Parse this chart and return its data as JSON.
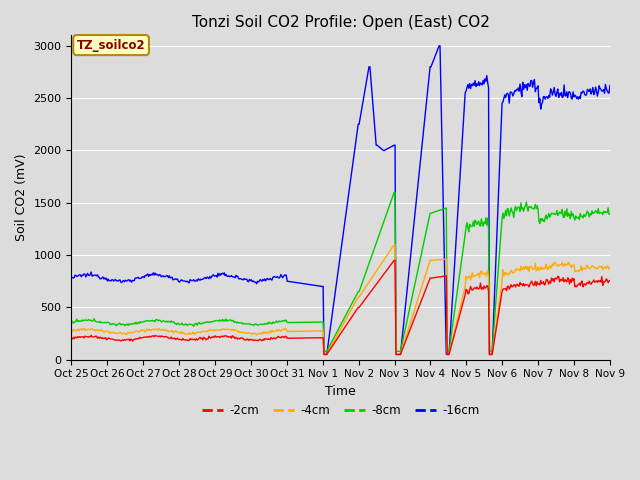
{
  "title": "Tonzi Soil CO2 Profile: Open (East) CO2",
  "ylabel": "Soil CO2 (mV)",
  "xlabel": "Time",
  "ylim": [
    0,
    3100
  ],
  "yticks": [
    0,
    500,
    1000,
    1500,
    2000,
    2500,
    3000
  ],
  "legend_label": "TZ_soilco2",
  "series_labels": [
    "-2cm",
    "-4cm",
    "-8cm",
    "-16cm"
  ],
  "series_colors": [
    "#ff0000",
    "#ffaa00",
    "#00cc00",
    "#0000ff"
  ],
  "xtick_labels": [
    "Oct 25",
    "Oct 26",
    "Oct 27",
    "Oct 28",
    "Oct 29",
    "Oct 30",
    "Oct 31",
    "Nov 1",
    "Nov 2",
    "Nov 3",
    "Nov 4",
    "Nov 5",
    "Nov 6",
    "Nov 7",
    "Nov 8",
    "Nov 9"
  ],
  "axes_facecolor": "#dcdcdc",
  "grid_color": "#ffffff",
  "fig_facecolor": "#dcdcdc",
  "title_fontsize": 11,
  "axis_label_fontsize": 9,
  "tick_fontsize": 8,
  "linewidth": 1.0
}
